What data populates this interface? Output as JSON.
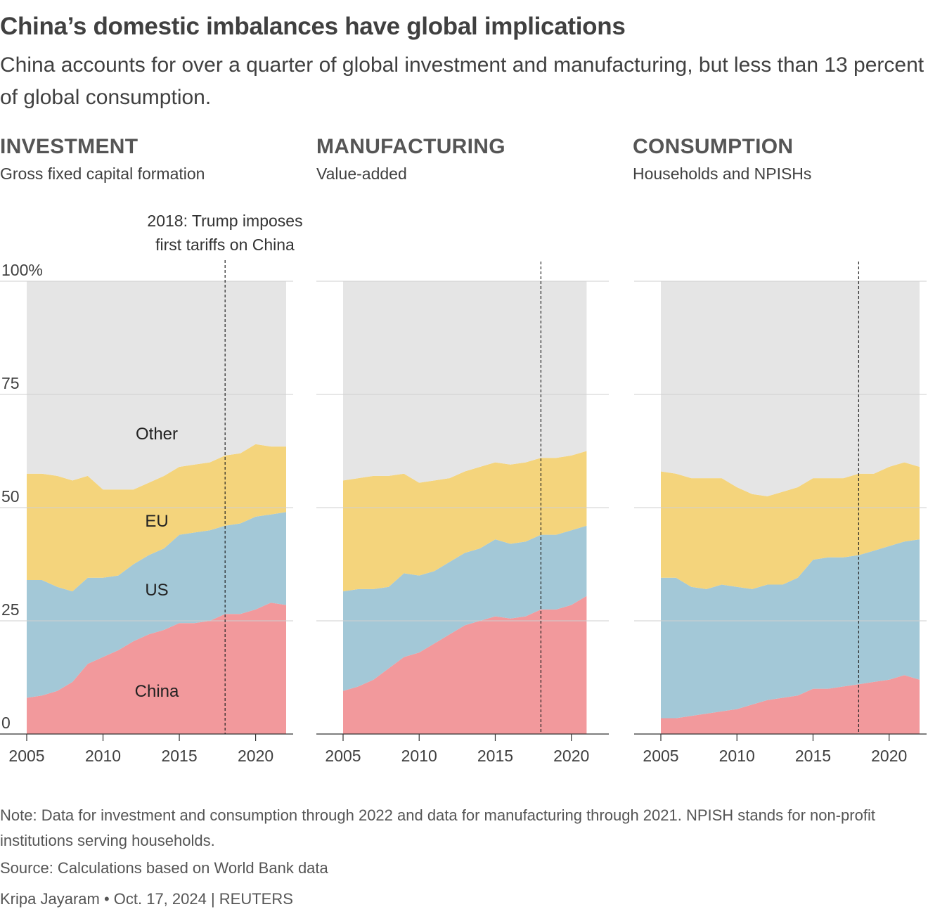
{
  "header": {
    "title": "China’s domestic imbalances have global implications",
    "subtitle": "China accounts for over a quarter of global investment and manufacturing, but less than 13 percent of global consumption."
  },
  "annotation": {
    "line1": "2018: Trump imposes",
    "line2": "first tariffs on China",
    "year": 2018
  },
  "colors": {
    "china": "#f2999c",
    "us": "#a3c8d7",
    "eu": "#f4d47c",
    "other": "#e5e5e5",
    "grid": "#cfcfcf"
  },
  "footer": {
    "note": "Note: Data for investment and consumption through 2022 and data for manufacturing through 2021. NPISH stands for non-profit institutions serving households.",
    "source": "Source: Calculations based on World Bank data",
    "byline": "Kripa Jayaram • Oct. 17, 2024 | REUTERS"
  },
  "chart_data": [
    {
      "type": "area",
      "title": "INVESTMENT",
      "subtitle": "Gross fixed capital formation",
      "ylim": [
        0,
        100
      ],
      "yticks": [
        "0",
        "25",
        "50",
        "75",
        "100%"
      ],
      "xticks": [
        "2005",
        "2010",
        "2015",
        "2020"
      ],
      "series_labels": [
        "China",
        "US",
        "EU",
        "Other"
      ],
      "x": [
        2005,
        2006,
        2007,
        2008,
        2009,
        2010,
        2011,
        2012,
        2013,
        2014,
        2015,
        2016,
        2017,
        2018,
        2019,
        2020,
        2021,
        2022
      ],
      "series": [
        {
          "name": "China",
          "values": [
            8,
            8.5,
            9.5,
            11.5,
            15.5,
            17,
            18.5,
            20.5,
            22,
            23,
            24.5,
            24.5,
            25,
            26.5,
            26.5,
            27.5,
            29,
            28.5
          ]
        },
        {
          "name": "US",
          "values": [
            26,
            25.5,
            23,
            20,
            19,
            17.5,
            16.5,
            17,
            17.5,
            18,
            19.5,
            20,
            20,
            19.5,
            20,
            20.5,
            19.5,
            20.5
          ]
        },
        {
          "name": "EU",
          "values": [
            23.5,
            23.5,
            24.5,
            24.5,
            22.5,
            19.5,
            19,
            16.5,
            16,
            16,
            15,
            15,
            15,
            15.5,
            15.5,
            16,
            15,
            14.5
          ]
        },
        {
          "name": "Other"
        }
      ]
    },
    {
      "type": "area",
      "title": "MANUFACTURING",
      "subtitle": "Value-added",
      "ylim": [
        0,
        100
      ],
      "xticks": [
        "2005",
        "2010",
        "2015",
        "2020"
      ],
      "x": [
        2005,
        2006,
        2007,
        2008,
        2009,
        2010,
        2011,
        2012,
        2013,
        2014,
        2015,
        2016,
        2017,
        2018,
        2019,
        2020,
        2021
      ],
      "series": [
        {
          "name": "China",
          "values": [
            9.5,
            10.5,
            12,
            14.5,
            17,
            18,
            20,
            22,
            24,
            25,
            26,
            25.5,
            26,
            27.5,
            27.5,
            28.5,
            30.5
          ]
        },
        {
          "name": "US",
          "values": [
            22,
            21.5,
            20,
            18,
            18.5,
            17,
            16,
            16,
            16,
            16,
            17,
            16.5,
            16.5,
            16.5,
            16.5,
            16.5,
            15.5
          ]
        },
        {
          "name": "EU",
          "values": [
            24.5,
            24.5,
            25,
            24.5,
            22,
            20.5,
            20,
            18.5,
            18,
            18,
            17,
            17.5,
            17.5,
            17,
            17,
            16.5,
            16.5
          ]
        },
        {
          "name": "Other"
        }
      ]
    },
    {
      "type": "area",
      "title": "CONSUMPTION",
      "subtitle": "Households and NPISHs",
      "ylim": [
        0,
        100
      ],
      "xticks": [
        "2005",
        "2010",
        "2015",
        "2020"
      ],
      "x": [
        2005,
        2006,
        2007,
        2008,
        2009,
        2010,
        2011,
        2012,
        2013,
        2014,
        2015,
        2016,
        2017,
        2018,
        2019,
        2020,
        2021,
        2022
      ],
      "series": [
        {
          "name": "China",
          "values": [
            3.5,
            3.5,
            4,
            4.5,
            5,
            5.5,
            6.5,
            7.5,
            8,
            8.5,
            10,
            10,
            10.5,
            11,
            11.5,
            12,
            13,
            12
          ]
        },
        {
          "name": "US",
          "values": [
            31,
            31,
            28.5,
            27.5,
            28,
            27,
            25.5,
            25.5,
            25,
            26,
            28.5,
            29,
            28.5,
            28.5,
            29,
            29.5,
            29.5,
            31
          ]
        },
        {
          "name": "EU",
          "values": [
            23.5,
            23,
            24,
            24.5,
            23.5,
            22,
            21,
            19.5,
            20.5,
            20,
            18,
            17.5,
            17.5,
            18,
            17,
            17.5,
            17.5,
            16
          ]
        },
        {
          "name": "Other"
        }
      ]
    }
  ]
}
